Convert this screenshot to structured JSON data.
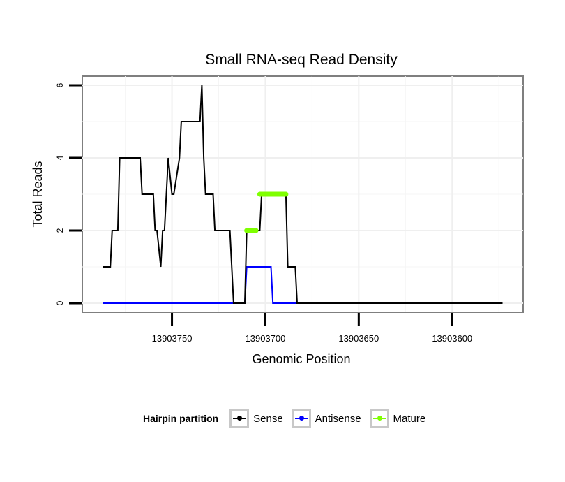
{
  "chart_data": {
    "type": "line",
    "title": "Small RNA-seq Read Density",
    "xlabel": "Genomic Position",
    "ylabel": "Total Reads",
    "xlim": [
      13903798,
      13903562
    ],
    "ylim": [
      -0.25,
      6.25
    ],
    "x_ticks": [
      13903750,
      13903700,
      13903650,
      13903600
    ],
    "x_tick_labels": [
      "13903750",
      "13903700",
      "13903650",
      "13903600"
    ],
    "y_ticks": [
      0,
      2,
      4,
      6
    ],
    "y_tick_labels": [
      "0",
      "2",
      "4",
      "6"
    ],
    "legend": {
      "title": "Hairpin partition",
      "position": "bottom",
      "entries": [
        {
          "name": "Sense",
          "color": "#000000"
        },
        {
          "name": "Antisense",
          "color": "#0000ff"
        },
        {
          "name": "Mature",
          "color": "#7fff00"
        }
      ]
    },
    "series": [
      {
        "name": "Sense",
        "color": "#000000",
        "x": [
          13903787,
          13903783,
          13903782,
          13903779,
          13903778,
          13903775,
          13903767,
          13903766,
          13903760,
          13903759,
          13903758,
          13903756,
          13903755,
          13903754,
          13903753,
          13903752,
          13903750,
          13903749,
          13903746,
          13903745,
          13903740,
          13903739,
          13903735,
          13903734,
          13903733,
          13903732,
          13903728,
          13903727,
          13903720,
          13903719,
          13903717,
          13903711,
          13903710,
          13903703,
          13903702,
          13903701,
          13903700,
          13903689,
          13903688,
          13903684,
          13903683,
          13903573
        ],
        "y": [
          1,
          1,
          2,
          2,
          4,
          4,
          4,
          3,
          3,
          2,
          2,
          1,
          2,
          2,
          3,
          4,
          3,
          3,
          4,
          5,
          5,
          5,
          5,
          6,
          4,
          3,
          3,
          2,
          2,
          2,
          0,
          0,
          2,
          2,
          3,
          3,
          3,
          3,
          1,
          1,
          0,
          0
        ]
      },
      {
        "name": "Antisense",
        "color": "#0000ff",
        "x": [
          13903787,
          13903711,
          13903710,
          13903697,
          13903696,
          13903573
        ],
        "y": [
          0,
          0,
          1,
          1,
          0,
          0
        ]
      }
    ],
    "mature_segments": [
      {
        "x0": 13903710,
        "x1": 13903705,
        "y": 2
      },
      {
        "x0": 13903703,
        "x1": 13903689,
        "y": 3
      }
    ]
  }
}
